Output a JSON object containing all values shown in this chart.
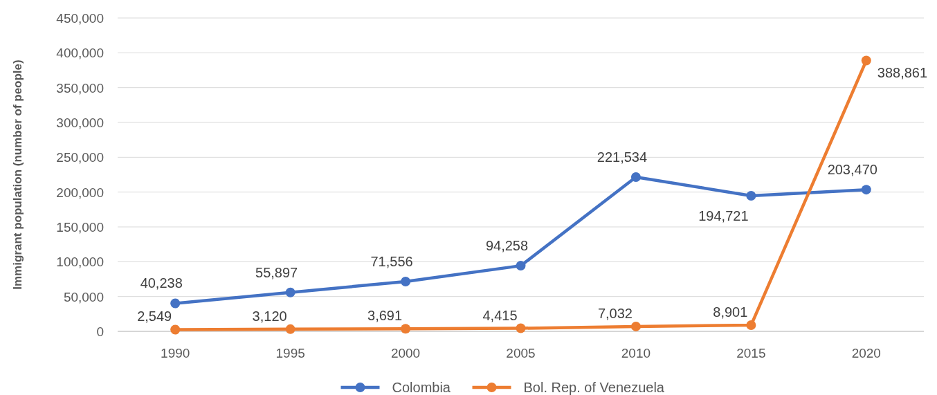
{
  "chart_data": {
    "type": "line",
    "ylabel": "Immigrant population (number of people)",
    "categories": [
      "1990",
      "1995",
      "2000",
      "2005",
      "2010",
      "2015",
      "2020"
    ],
    "series": [
      {
        "name": "Colombia",
        "color": "#4472c4",
        "values": [
          40238,
          55897,
          71556,
          94258,
          221534,
          194721,
          203470
        ],
        "value_labels": [
          "40,238",
          "55,897",
          "71,556",
          "94,258",
          "221,534",
          "194,721",
          "203,470"
        ]
      },
      {
        "name": "Bol. Rep. of Venezuela",
        "color": "#ed7d31",
        "values": [
          2549,
          3120,
          3691,
          4415,
          7032,
          8901,
          388861
        ],
        "value_labels": [
          "2,549",
          "3,120",
          "3,691",
          "4,415",
          "7,032",
          "8,901",
          "388,861"
        ]
      }
    ],
    "ylim": [
      0,
      450000
    ],
    "yticks": [
      {
        "value": 0,
        "label": "0"
      },
      {
        "value": 50000,
        "label": "50,000"
      },
      {
        "value": 100000,
        "label": "100,000"
      },
      {
        "value": 150000,
        "label": "150,000"
      },
      {
        "value": 200000,
        "label": "200,000"
      },
      {
        "value": 250000,
        "label": "250,000"
      },
      {
        "value": 300000,
        "label": "300,000"
      },
      {
        "value": 350000,
        "label": "350,000"
      },
      {
        "value": 400000,
        "label": "400,000"
      },
      {
        "value": 450000,
        "label": "450,000"
      }
    ],
    "grid": "y",
    "legend": "bottom",
    "marker": "circle",
    "line_style": "solid"
  }
}
